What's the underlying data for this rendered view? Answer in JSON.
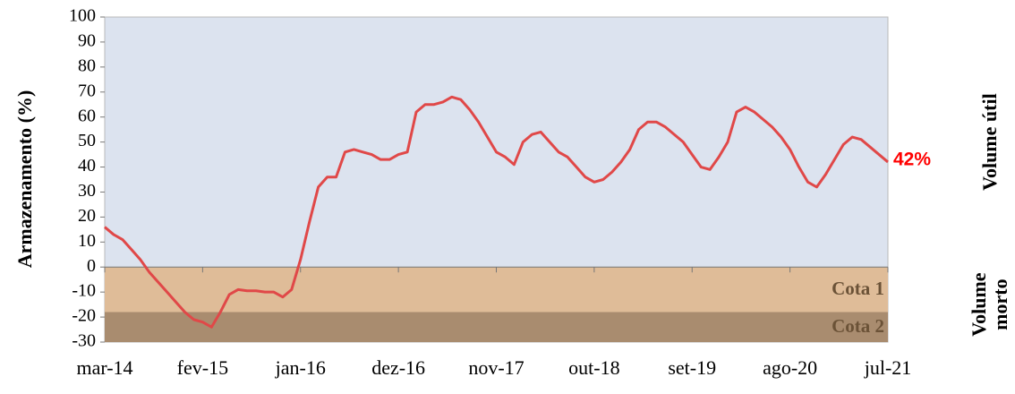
{
  "chart_data": {
    "type": "line",
    "ylabel": "Armazenamento (%)",
    "x": [
      "2014-03",
      "2014-04",
      "2014-05",
      "2014-06",
      "2014-07",
      "2014-08",
      "2014-09",
      "2014-10",
      "2014-11",
      "2014-12",
      "2015-01",
      "2015-02",
      "2015-03",
      "2015-04",
      "2015-05",
      "2015-06",
      "2015-07",
      "2015-08",
      "2015-09",
      "2015-10",
      "2015-11",
      "2015-12",
      "2016-01",
      "2016-02",
      "2016-03",
      "2016-04",
      "2016-05",
      "2016-06",
      "2016-07",
      "2016-08",
      "2016-09",
      "2016-10",
      "2016-11",
      "2016-12",
      "2017-01",
      "2017-02",
      "2017-03",
      "2017-04",
      "2017-05",
      "2017-06",
      "2017-07",
      "2017-08",
      "2017-09",
      "2017-10",
      "2017-11",
      "2017-12",
      "2018-01",
      "2018-02",
      "2018-03",
      "2018-04",
      "2018-05",
      "2018-06",
      "2018-07",
      "2018-08",
      "2018-09",
      "2018-10",
      "2018-11",
      "2018-12",
      "2019-01",
      "2019-02",
      "2019-03",
      "2019-04",
      "2019-05",
      "2019-06",
      "2019-07",
      "2019-08",
      "2019-09",
      "2019-10",
      "2019-11",
      "2019-12",
      "2020-01",
      "2020-02",
      "2020-03",
      "2020-04",
      "2020-05",
      "2020-06",
      "2020-07",
      "2020-08",
      "2020-09",
      "2020-10",
      "2020-11",
      "2020-12",
      "2021-01",
      "2021-02",
      "2021-03",
      "2021-04",
      "2021-05",
      "2021-06",
      "2021-07"
    ],
    "series": [
      {
        "name": "Armazenamento",
        "color": "#e04848",
        "values": [
          16,
          13,
          11,
          7,
          3,
          -2,
          -6,
          -10,
          -14,
          -18,
          -21,
          -22,
          -24,
          -18,
          -11,
          -9,
          -9.5,
          -9.5,
          -10,
          -10,
          -12,
          -9,
          3,
          18,
          32,
          36,
          36,
          46,
          47,
          46,
          45,
          43,
          43,
          45,
          46,
          62,
          65,
          65,
          66,
          68,
          67,
          63,
          58,
          52,
          46,
          44,
          41,
          50,
          53,
          54,
          50,
          46,
          44,
          40,
          36,
          34,
          35,
          38,
          42,
          47,
          55,
          58,
          58,
          56,
          53,
          50,
          45,
          40,
          39,
          44,
          50,
          62,
          64,
          62,
          59,
          56,
          52,
          47,
          40,
          34,
          32,
          37,
          43,
          49,
          52,
          51,
          48,
          45,
          42
        ]
      }
    ],
    "annotations": [
      {
        "text": "42%",
        "x": "2021-07",
        "y": 42,
        "color": "#ff0000"
      }
    ],
    "bands": [
      {
        "label": "Cota 1",
        "from": 0,
        "to": -18,
        "color": "#dfbc98"
      },
      {
        "label": "Cota 2",
        "from": -18,
        "to": -30,
        "color": "#a98c6f"
      }
    ],
    "plot_background": "#dce3ef",
    "side_labels": [
      {
        "lines": [
          "Volume útil"
        ],
        "from": 100,
        "to": 0
      },
      {
        "lines": [
          "Volume",
          "morto"
        ],
        "from": 0,
        "to": -30
      }
    ],
    "xlim": [
      "2014-03",
      "2021-07"
    ],
    "xticks": [
      {
        "value": "2014-03",
        "label": "mar-14"
      },
      {
        "value": "2015-02",
        "label": "fev-15"
      },
      {
        "value": "2016-01",
        "label": "jan-16"
      },
      {
        "value": "2016-12",
        "label": "dez-16"
      },
      {
        "value": "2017-11",
        "label": "nov-17"
      },
      {
        "value": "2018-10",
        "label": "out-18"
      },
      {
        "value": "2019-09",
        "label": "set-19"
      },
      {
        "value": "2020-08",
        "label": "ago-20"
      },
      {
        "value": "2021-07",
        "label": "jul-21"
      }
    ],
    "ylim": [
      -30,
      100
    ],
    "yticks": [
      -30,
      -20,
      -10,
      0,
      10,
      20,
      30,
      40,
      50,
      60,
      70,
      80,
      90,
      100
    ]
  }
}
